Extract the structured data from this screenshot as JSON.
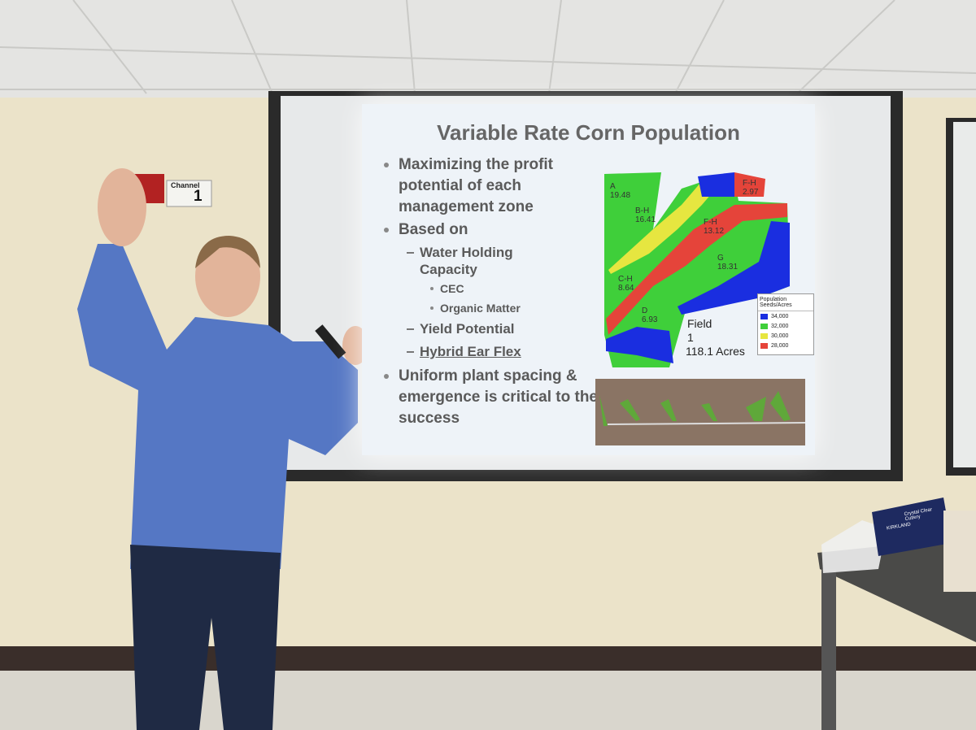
{
  "sign": {
    "label": "Channel",
    "number": "1"
  },
  "slide": {
    "title": "Variable Rate Corn Population",
    "bullets": [
      {
        "level": 1,
        "text": "Maximizing the profit potential of each management zone"
      },
      {
        "level": 1,
        "text": "Based on"
      },
      {
        "level": 2,
        "text": "Water Holding Capacity"
      },
      {
        "level": 3,
        "text": "CEC"
      },
      {
        "level": 3,
        "text": "Organic Matter"
      },
      {
        "level": 2,
        "text": "Yield Potential"
      },
      {
        "level": 2,
        "text": "Hybrid Ear Flex",
        "underline": true
      },
      {
        "level": 1,
        "text": "Uniform plant spacing & emergence is critical to the success"
      }
    ],
    "map": {
      "zones": [
        {
          "label": "A",
          "value": "19.48"
        },
        {
          "label": "B-H",
          "value": "16.41"
        },
        {
          "label": "F-H",
          "value": "2.97"
        },
        {
          "label": "F-H",
          "value": "13.12"
        },
        {
          "label": "G",
          "value": "18.31"
        },
        {
          "label": "C-H",
          "value": "8.64"
        },
        {
          "label": "D",
          "value": "6.93"
        }
      ],
      "legend": {
        "title": "Population Seeds/Acres",
        "items": [
          {
            "label": "34,000",
            "color": "#1a2ee0"
          },
          {
            "label": "32,000",
            "color": "#3fcf3a"
          },
          {
            "label": "30,000",
            "color": "#e6e640"
          },
          {
            "label": "28,000",
            "color": "#e5443a"
          }
        ]
      },
      "field": [
        "Field",
        "1",
        "118.1 Acres"
      ]
    }
  },
  "box": {
    "brand": "KIRKLAND",
    "product": "Crystal Clear Cutlery"
  }
}
